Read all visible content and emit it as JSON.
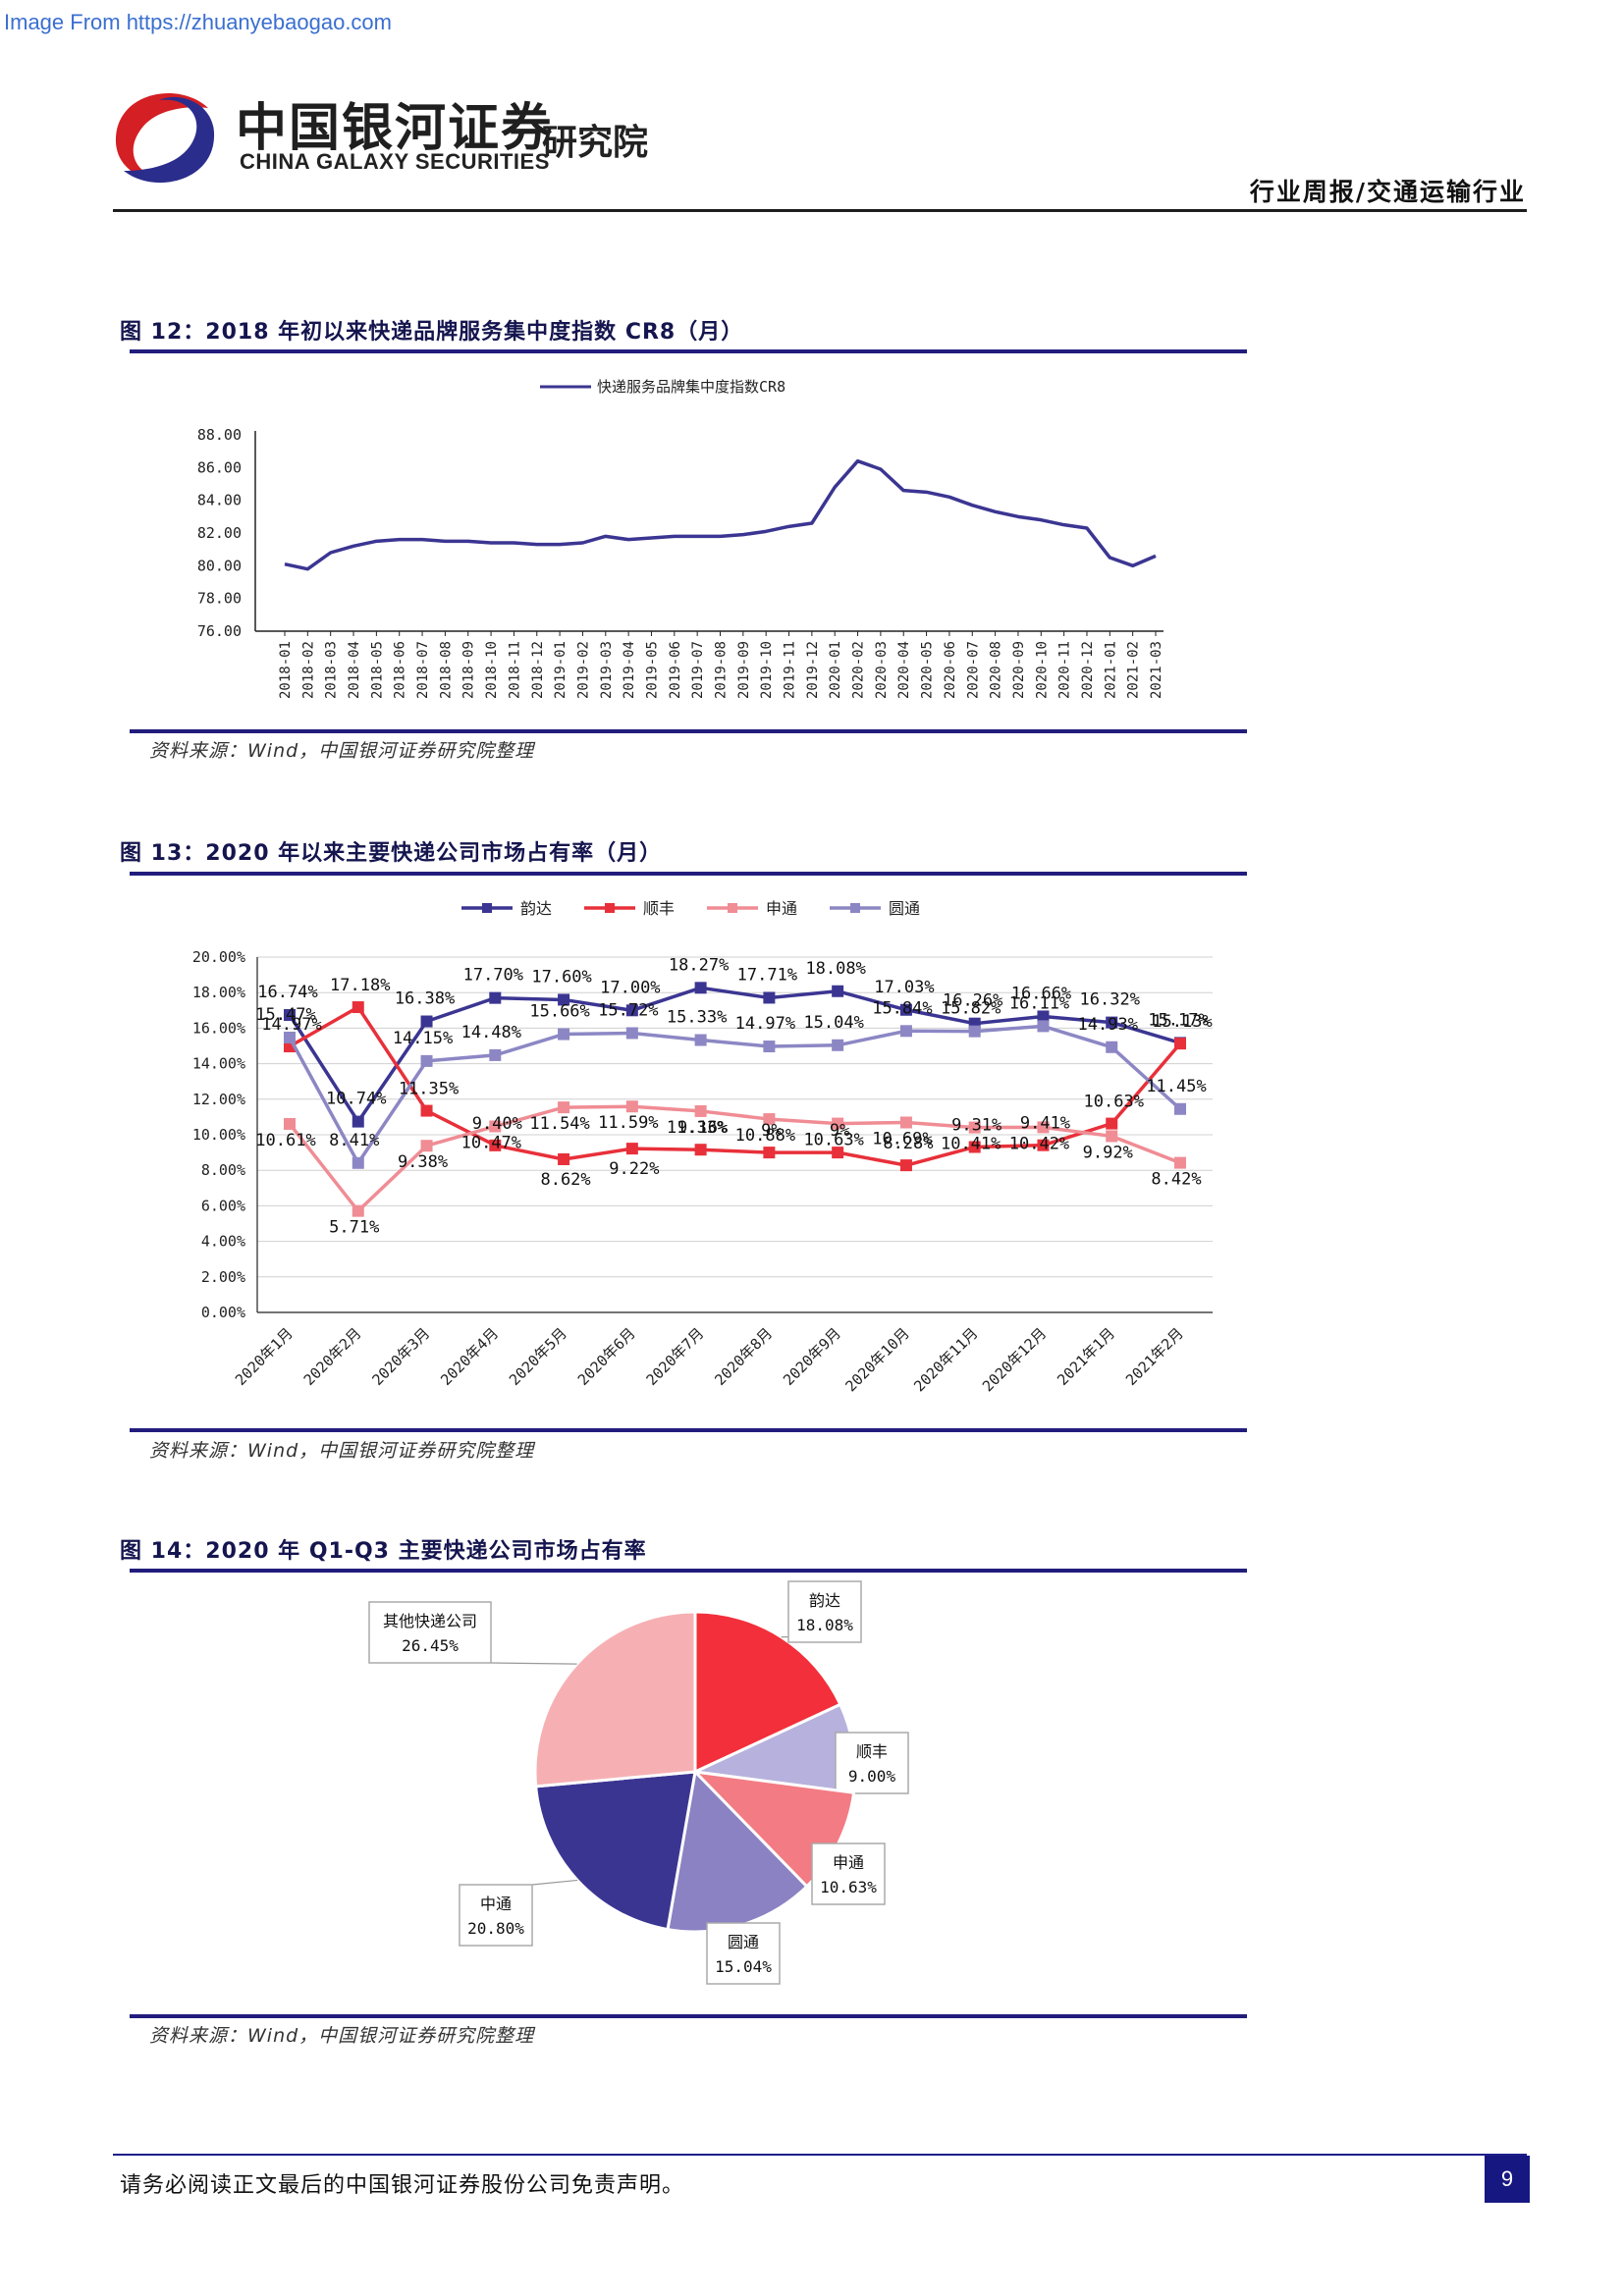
{
  "watermark": "Image From https://zhuanyebaogao.com",
  "header": {
    "company_cn": "中国银河证券",
    "company_en": "CHINA GALAXY SECURITIES",
    "institute": "研究院",
    "report_type": "行业周报/交通运输行业"
  },
  "figures": [
    {
      "title": "图 12：2018 年初以来快递品牌服务集中度指数 CR8（月）",
      "source": "资料来源：Wind，中国银河证券研究院整理"
    },
    {
      "title": "图 13：2020 年以来主要快递公司市场占有率（月）",
      "source": "资料来源：Wind，中国银河证券研究院整理"
    },
    {
      "title": "图 14：2020 年 Q1-Q3 主要快递公司市场占有率",
      "source": "资料来源：Wind，中国银河证券研究院整理"
    }
  ],
  "footer": {
    "disclaimer": "请务必阅读正文最后的中国银河证券股份公司免责声明。",
    "page_number": "9"
  },
  "colors": {
    "navy": "#3b3592",
    "red": "#e8303a",
    "pink": "#f08c94",
    "lavender": "#8c87c4"
  },
  "chart_data": [
    {
      "type": "line",
      "legend": [
        "快递服务品牌集中度指数CR8"
      ],
      "categories": [
        "2018-01",
        "2018-02",
        "2018-03",
        "2018-04",
        "2018-05",
        "2018-06",
        "2018-07",
        "2018-08",
        "2018-09",
        "2018-10",
        "2018-11",
        "2018-12",
        "2019-01",
        "2019-02",
        "2019-03",
        "2019-04",
        "2019-05",
        "2019-06",
        "2019-07",
        "2019-08",
        "2019-09",
        "2019-10",
        "2019-11",
        "2019-12",
        "2020-01",
        "2020-02",
        "2020-03",
        "2020-04",
        "2020-05",
        "2020-06",
        "2020-07",
        "2020-08",
        "2020-09",
        "2020-10",
        "2020-11",
        "2020-12",
        "2021-01",
        "2021-02",
        "2021-03"
      ],
      "series": [
        {
          "name": "快递服务品牌集中度指数CR8",
          "values": [
            80.1,
            79.8,
            80.8,
            81.2,
            81.5,
            81.6,
            81.6,
            81.5,
            81.5,
            81.4,
            81.4,
            81.3,
            81.3,
            81.4,
            81.8,
            81.6,
            81.7,
            81.8,
            81.8,
            81.8,
            81.9,
            82.1,
            82.4,
            82.6,
            84.8,
            86.4,
            85.9,
            84.6,
            84.5,
            84.2,
            83.7,
            83.3,
            83.0,
            82.8,
            82.5,
            82.3,
            80.5,
            80.0,
            80.6
          ]
        }
      ],
      "y_ticks": [
        "88.00",
        "86.00",
        "84.00",
        "82.00",
        "80.00",
        "78.00",
        "76.00"
      ],
      "ylim": [
        76,
        88
      ]
    },
    {
      "type": "line",
      "categories": [
        "2020年1月",
        "2020年2月",
        "2020年3月",
        "2020年4月",
        "2020年5月",
        "2020年6月",
        "2020年7月",
        "2020年8月",
        "2020年9月",
        "2020年10月",
        "2020年11月",
        "2020年12月",
        "2021年1月",
        "2021年2月"
      ],
      "series": [
        {
          "name": "韵达",
          "values": [
            16.74,
            10.74,
            16.38,
            17.7,
            17.6,
            17.0,
            18.27,
            17.71,
            18.08,
            17.03,
            16.26,
            16.66,
            16.32,
            15.17
          ],
          "labels": [
            "16.74%",
            "10.74%",
            "16.38%",
            "17.70%",
            "17.60%",
            "17.00%",
            "18.27%",
            "17.71%",
            "18.08%",
            "17.03%",
            "16.26%",
            "16.66%",
            "16.32%",
            "15.17%"
          ]
        },
        {
          "name": "顺丰",
          "values": [
            14.97,
            17.18,
            11.35,
            9.4,
            8.62,
            9.22,
            9.16,
            9.0,
            9.0,
            8.28,
            9.31,
            9.41,
            10.63,
            15.13
          ],
          "labels": [
            "14.97%",
            "17.18%",
            "11.35%",
            "9.40%",
            "8.62%",
            "9.22%",
            "9.16%",
            "9%",
            "9%",
            "8.28%",
            "9.31%",
            "9.41%",
            "10.63%",
            "15.13%"
          ]
        },
        {
          "name": "申通",
          "values": [
            10.61,
            5.71,
            9.38,
            10.47,
            11.54,
            11.59,
            11.33,
            10.88,
            10.63,
            10.69,
            10.41,
            10.42,
            9.92,
            8.42
          ],
          "labels": [
            "10.61%",
            "5.71%",
            "9.38%",
            "10.47%",
            "11.54%",
            "11.59%",
            "11.33%",
            "10.88%",
            "10.63%",
            "10.69%",
            "10.41%",
            "10.42%",
            "9.92%",
            "8.42%"
          ]
        },
        {
          "name": "圆通",
          "values": [
            15.47,
            8.41,
            14.15,
            14.48,
            15.66,
            15.72,
            15.33,
            14.97,
            15.04,
            15.84,
            15.82,
            16.11,
            14.93,
            11.45
          ],
          "labels": [
            "15.47%",
            "8.41%",
            "14.15%",
            "14.48%",
            "15.66%",
            "15.72%",
            "15.33%",
            "14.97%",
            "15.04%",
            "15.84%",
            "15.82%",
            "16.11%",
            "14.93%",
            "11.45%"
          ]
        }
      ],
      "y_ticks": [
        "20.00%",
        "18.00%",
        "16.00%",
        "14.00%",
        "12.00%",
        "10.00%",
        "8.00%",
        "6.00%",
        "4.00%",
        "2.00%",
        "0.00%"
      ],
      "ylim": [
        0,
        20
      ]
    },
    {
      "type": "pie",
      "slices": [
        {
          "name": "韵达",
          "value": 18.08,
          "label": "18.08%"
        },
        {
          "name": "顺丰",
          "value": 9.0,
          "label": "9.00%"
        },
        {
          "name": "申通",
          "value": 10.63,
          "label": "10.63%"
        },
        {
          "name": "圆通",
          "value": 15.04,
          "label": "15.04%"
        },
        {
          "name": "中通",
          "value": 20.8,
          "label": "20.80%"
        },
        {
          "name": "其他快递公司",
          "value": 26.45,
          "label": "26.45%"
        }
      ]
    }
  ]
}
